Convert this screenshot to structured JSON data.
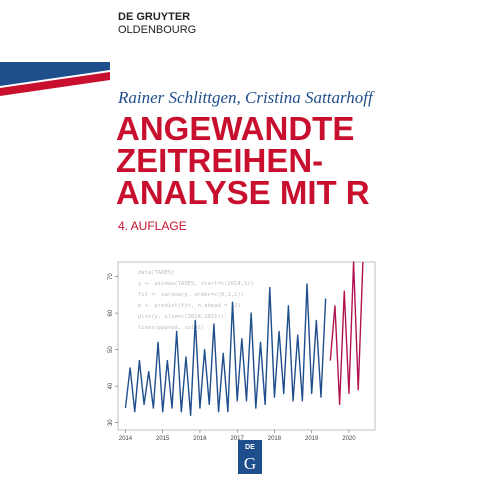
{
  "publisher": [
    "DE GRUYTER",
    "OLDENBOURG"
  ],
  "authors": "Rainer Schlittgen, Cristina Sattarhoff",
  "title": [
    "ANGEWANDTE",
    "ZEITREIHEN-",
    "ANALYSE MIT R"
  ],
  "edition": "4. AUFLAGE",
  "logo": [
    "DE",
    "G"
  ],
  "code_lines": [
    "data(TAXES)",
    "y <- window(TAXES, start=c(2014,1))",
    "fit <- sarima(y, order=c(0,1,1))",
    "p <- predict(fit, n.ahead = 12)",
    "plot(y, xlim=c(2014,2021))",
    "lines(p$pred, col=2)"
  ],
  "chart_data": {
    "type": "line",
    "xlim": [
      2013.8,
      2020.7
    ],
    "ylim": [
      28,
      74
    ],
    "xticks": [
      2014,
      2015,
      2016,
      2017,
      2018,
      2019,
      2020
    ],
    "yticks": [
      30,
      40,
      50,
      60,
      70
    ],
    "series": [
      {
        "color": "#1f4e8c",
        "x": [
          2014,
          2014.125,
          2014.25,
          2014.375,
          2014.5,
          2014.625,
          2014.75,
          2014.875,
          2015,
          2015.125,
          2015.25,
          2015.375,
          2015.5,
          2015.625,
          2015.75,
          2015.875,
          2016,
          2016.125,
          2016.25,
          2016.375,
          2016.5,
          2016.625,
          2016.75,
          2016.875,
          2017,
          2017.125,
          2017.25,
          2017.375,
          2017.5,
          2017.625,
          2017.75,
          2017.875,
          2018,
          2018.125,
          2018.25,
          2018.375,
          2018.5,
          2018.625,
          2018.75,
          2018.875,
          2019,
          2019.125,
          2019.25,
          2019.375
        ],
        "values": [
          34,
          45,
          33,
          47,
          35,
          44,
          34,
          52,
          33,
          47,
          34,
          55,
          33,
          48,
          32,
          58,
          34,
          50,
          35,
          57,
          33,
          49,
          33,
          63,
          36,
          53,
          36,
          60,
          34,
          52,
          35,
          67,
          37,
          55,
          38,
          62,
          36,
          54,
          36,
          68,
          38,
          58,
          37,
          64
        ]
      },
      {
        "color": "#b0124f",
        "x": [
          2019.5,
          2019.625,
          2019.75,
          2019.875,
          2020,
          2020.125,
          2020.25,
          2020.375
        ],
        "values": [
          47,
          62,
          35,
          66,
          38,
          74,
          39,
          74
        ]
      }
    ]
  }
}
